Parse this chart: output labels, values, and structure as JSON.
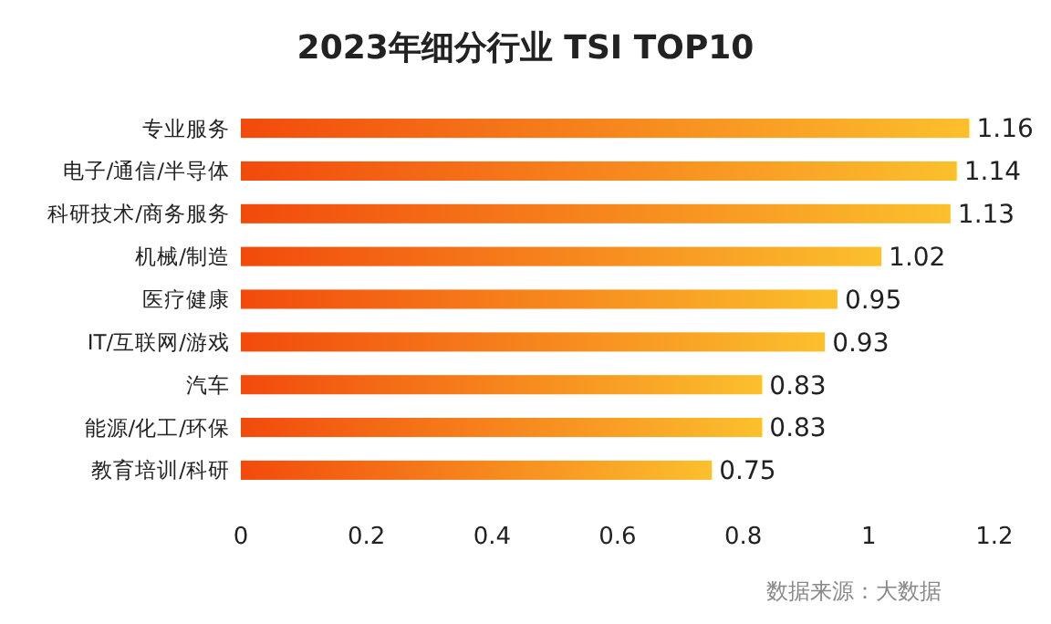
{
  "chart_data": {
    "type": "bar",
    "orientation": "horizontal",
    "title": "2023年细分行业 TSI TOP10",
    "categories": [
      "专业服务",
      "电子/通信/半导体",
      "科研技术/商务服务",
      "机械/制造",
      "医疗健康",
      "IT/互联网/游戏",
      "汽车",
      "能源/化工/环保",
      "教育培训/科研"
    ],
    "values": [
      1.16,
      1.14,
      1.13,
      1.02,
      0.95,
      0.93,
      0.83,
      0.83,
      0.75
    ],
    "color": "#f24a0c",
    "xlim": [
      0,
      1.2
    ],
    "xticks": [
      0,
      0.2,
      0.4,
      0.6,
      0.8,
      1,
      1.2
    ],
    "data_labels": true,
    "annotations": [
      "数据来源：大数据"
    ]
  }
}
